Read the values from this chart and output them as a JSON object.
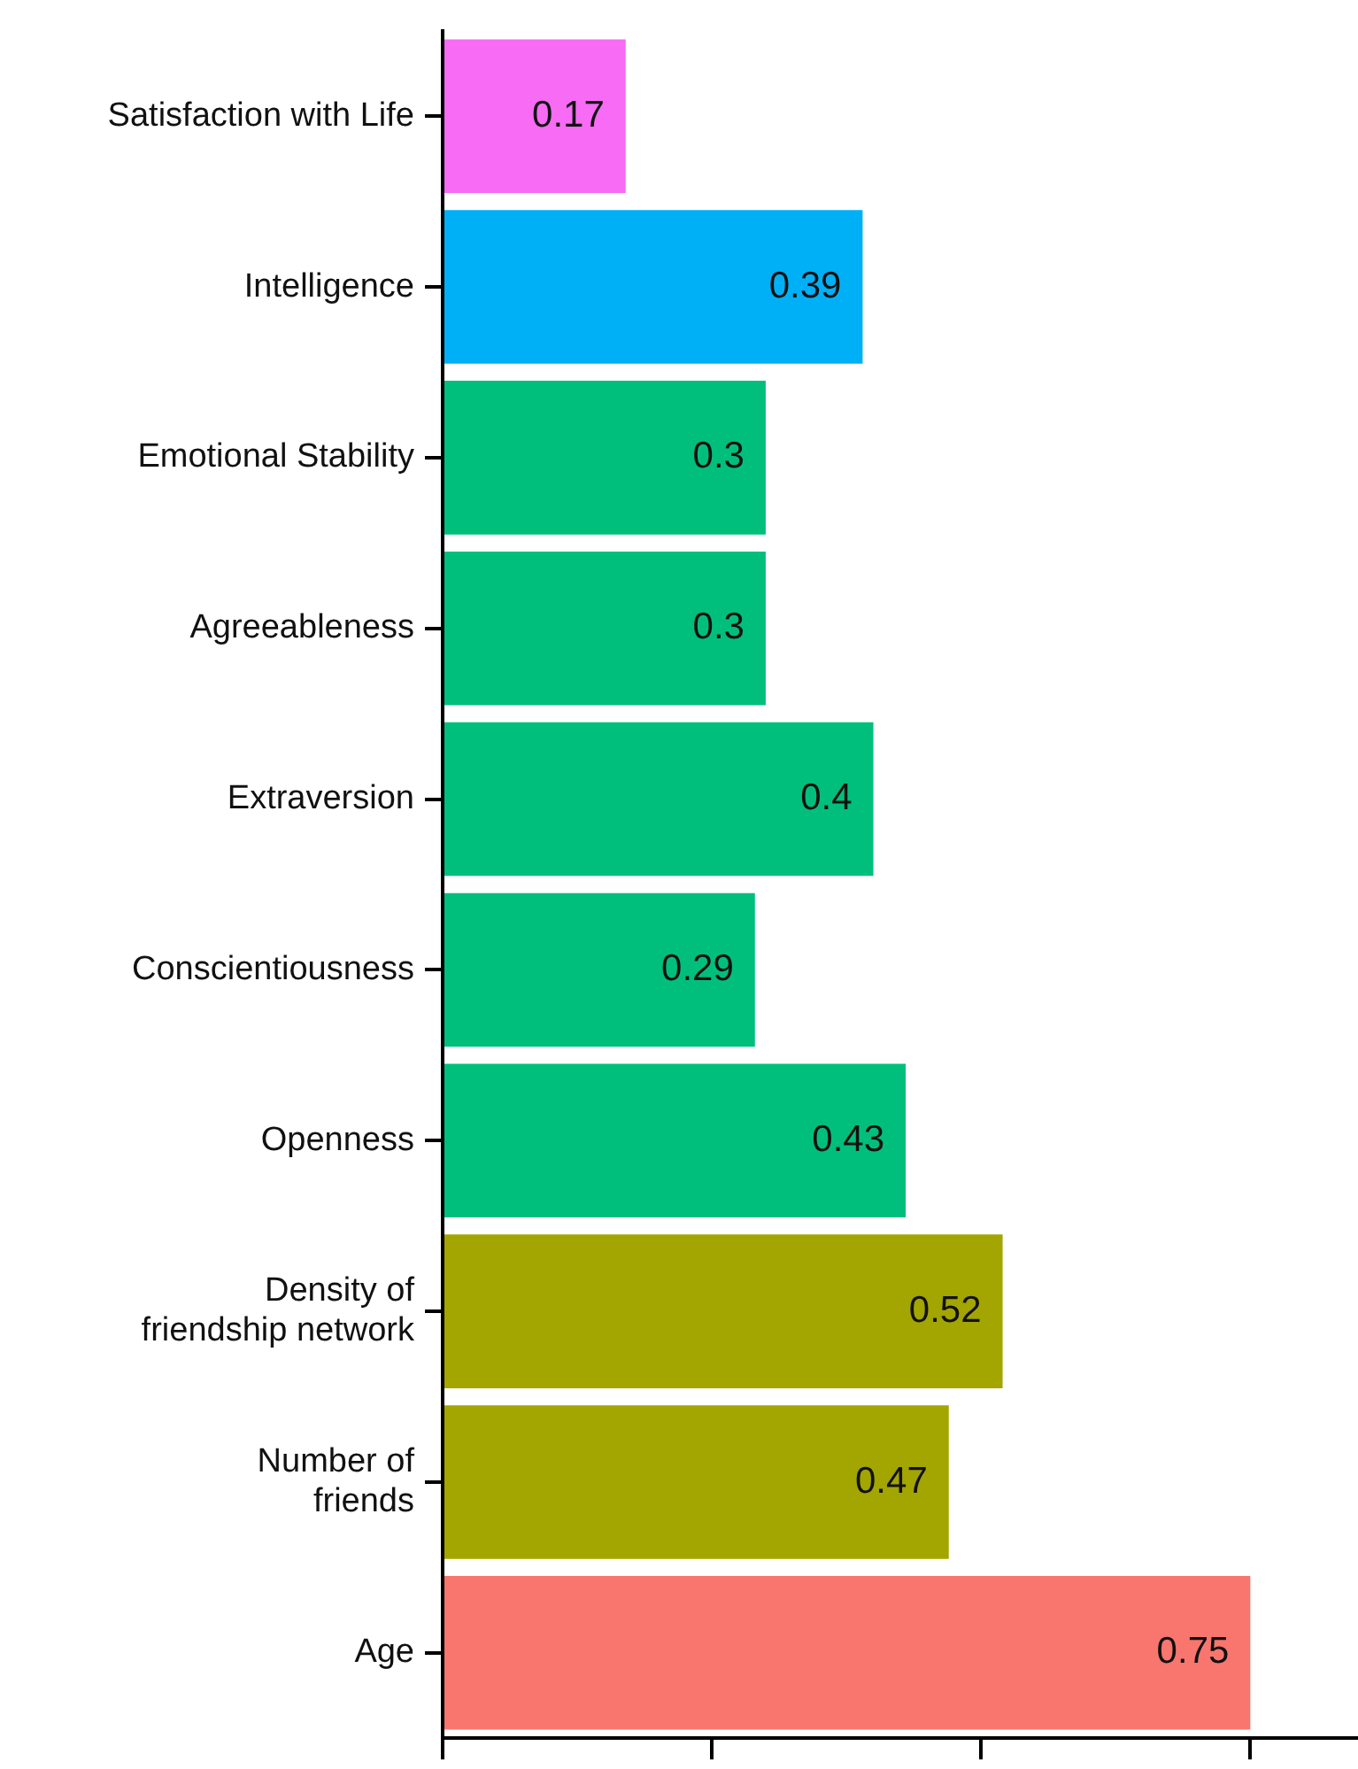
{
  "chart_data": {
    "type": "bar",
    "orientation": "horizontal",
    "categories": [
      "Satisfaction with Life",
      "Intelligence",
      "Emotional Stability",
      "Agreeableness",
      "Extraversion",
      "Conscientiousness",
      "Openness",
      "Density of\nfriendship network",
      "Number of\nfriends",
      "Age"
    ],
    "values": [
      0.17,
      0.39,
      0.3,
      0.3,
      0.4,
      0.29,
      0.43,
      0.52,
      0.47,
      0.75
    ],
    "colors": [
      "#f76bf5",
      "#00b0f6",
      "#00bf7d",
      "#00bf7d",
      "#00bf7d",
      "#00bf7d",
      "#00bf7d",
      "#a3a500",
      "#a3a500",
      "#f8766d"
    ],
    "xlim": [
      0,
      0.85
    ],
    "xticks": [
      {
        "value": 0,
        "label": null
      },
      {
        "value": 0.25,
        "label": null
      },
      {
        "value": 0.5,
        "label": null
      },
      {
        "value": 0.75,
        "label": null
      }
    ],
    "tick_labels": "y",
    "grid": false,
    "legend": false,
    "data_labels": true
  }
}
